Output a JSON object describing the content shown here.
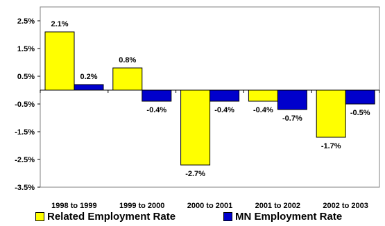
{
  "chart_data": {
    "type": "bar",
    "categories": [
      "1998 to 1999",
      "1999 to 2000",
      "2000 to 2001",
      "2001 to 2002",
      "2002 to 2003"
    ],
    "series": [
      {
        "name": "Related Employment Rate",
        "color": "#FFFF00",
        "values": [
          2.1,
          0.8,
          -2.7,
          -0.4,
          -1.7
        ],
        "labels": [
          "2.1%",
          "0.8%",
          "-2.7%",
          "-0.4%",
          "-1.7%"
        ]
      },
      {
        "name": "MN Employment Rate",
        "color": "#0000CC",
        "values": [
          0.2,
          -0.4,
          -0.4,
          -0.7,
          -0.5
        ],
        "labels": [
          "0.2%",
          "-0.4%",
          "-0.4%",
          "-0.7%",
          "-0.5%"
        ]
      }
    ],
    "yticks": [
      2.5,
      1.5,
      0.5,
      -0.5,
      -1.5,
      -2.5,
      -3.5
    ],
    "ytick_labels": [
      "2.5%",
      "1.5%",
      "0.5%",
      "-0.5%",
      "-1.5%",
      "-2.5%",
      "-3.5%"
    ],
    "ylim": [
      -3.5,
      3.0
    ],
    "grid": false,
    "legend_position": "bottom"
  }
}
